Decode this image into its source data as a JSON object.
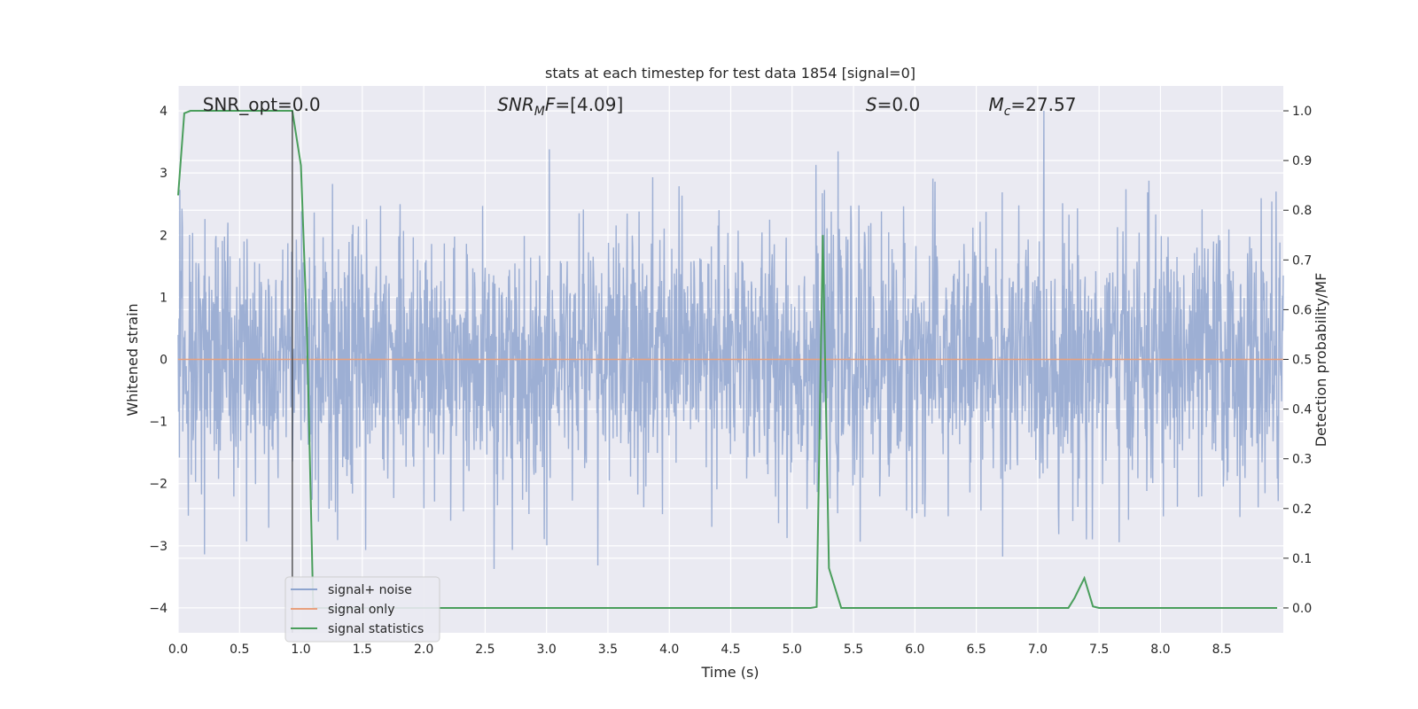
{
  "chart_data": {
    "type": "line",
    "title": "stats at each timestep for test data 1854 [signal=0]",
    "xlabel": "Time (s)",
    "ylabel": "Whitened strain",
    "ylabel_right": "Detection probability/MF",
    "xlim": [
      0.0,
      9.0
    ],
    "ylim": [
      -4.4,
      4.4
    ],
    "ylim_right": [
      -0.05,
      1.05
    ],
    "x_ticks": [
      "0.0",
      "0.5",
      "1.0",
      "1.5",
      "2.0",
      "2.5",
      "3.0",
      "3.5",
      "4.0",
      "4.5",
      "5.0",
      "5.5",
      "6.0",
      "6.5",
      "7.0",
      "7.5",
      "8.0",
      "8.5"
    ],
    "y_ticks": [
      "−4",
      "−3",
      "−2",
      "−1",
      "0",
      "1",
      "2",
      "3",
      "4"
    ],
    "y_ticks_right": [
      "0.0",
      "0.1",
      "0.2",
      "0.3",
      "0.4",
      "0.5",
      "0.6",
      "0.7",
      "0.8",
      "0.9",
      "1.0"
    ],
    "grid": true,
    "legend_placement": "lower-left",
    "annotations": [
      {
        "label": "SNR_opt=0.0",
        "x": 0.2,
        "y": 4.1
      },
      {
        "label": "SNR",
        "sub": "M",
        "suffix": "F=[4.09]",
        "x": 2.6,
        "y": 4.1
      },
      {
        "label": "S",
        "suffix": "=0.0",
        "x": 5.6,
        "y": 4.1
      },
      {
        "label": "M",
        "sub": "c",
        "suffix": "=27.57",
        "x": 6.6,
        "y": 4.1
      }
    ],
    "vline_x": 0.93,
    "series": [
      {
        "name": "signal+ noise",
        "color": "#8fa5cf",
        "axis": "left",
        "description": "whitened noise, roughly ±4"
      },
      {
        "name": "signal only",
        "color": "#e8a07e",
        "axis": "left",
        "x": [
          0.0,
          9.0
        ],
        "y": [
          0.0,
          0.0
        ]
      },
      {
        "name": "signal statistics",
        "color": "#4a9e5c",
        "axis": "right",
        "x": [
          0.0,
          0.05,
          0.1,
          0.2,
          0.5,
          0.93,
          1.0,
          1.05,
          1.1,
          1.2,
          2.0,
          3.0,
          4.0,
          5.0,
          5.15,
          5.2,
          5.25,
          5.3,
          5.4,
          5.5,
          6.0,
          7.0,
          7.25,
          7.3,
          7.38,
          7.45,
          7.5,
          8.0,
          8.95
        ],
        "y": [
          0.83,
          0.995,
          1.0,
          1.0,
          1.0,
          1.0,
          0.89,
          0.55,
          0.0,
          0.0,
          0.0,
          0.0,
          0.0,
          0.0,
          0.0,
          0.002,
          0.75,
          0.08,
          0.0,
          0.0,
          0.0,
          0.0,
          0.0,
          0.02,
          0.06,
          0.003,
          0.0,
          0.0,
          0.0
        ]
      }
    ]
  }
}
